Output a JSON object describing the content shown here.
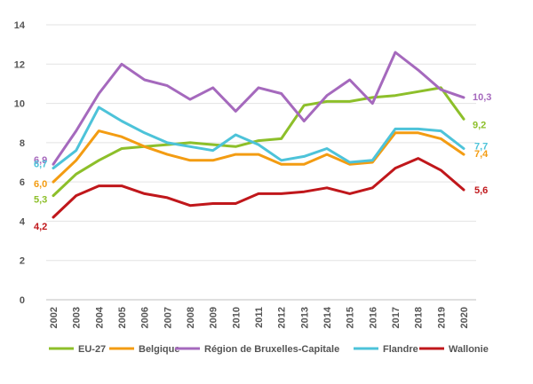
{
  "chart_data": {
    "type": "line",
    "title": "",
    "xlabel": "",
    "ylabel": "",
    "ylim": [
      0,
      14
    ],
    "yticks": [
      0,
      2,
      4,
      6,
      8,
      10,
      12,
      14
    ],
    "x": [
      "2002",
      "2003",
      "2004",
      "2005",
      "2006",
      "2007",
      "2008",
      "2009",
      "2010",
      "2011",
      "2012",
      "2013",
      "2014",
      "2015",
      "2016",
      "2017",
      "2018",
      "2019",
      "2020"
    ],
    "grid": "y",
    "legend_position": "bottom",
    "series": [
      {
        "name": "EU-27",
        "color": "#8DBF2A",
        "values": [
          5.3,
          6.4,
          7.1,
          7.7,
          7.8,
          7.9,
          8.0,
          7.9,
          7.8,
          8.1,
          8.2,
          9.9,
          10.1,
          10.1,
          10.3,
          10.4,
          10.6,
          10.8,
          9.2
        ],
        "start_label": "5,3",
        "end_label": "9,2"
      },
      {
        "name": "Belgique",
        "color": "#F39C12",
        "values": [
          6.0,
          7.1,
          8.6,
          8.3,
          7.8,
          7.4,
          7.1,
          7.1,
          7.4,
          7.4,
          6.9,
          6.9,
          7.4,
          6.9,
          7.0,
          8.5,
          8.5,
          8.2,
          7.4
        ],
        "start_label": "6,0",
        "end_label": "7,4"
      },
      {
        "name": "Région de Bruxelles-Capitale",
        "color": "#A569BD",
        "values": [
          6.9,
          8.6,
          10.5,
          12.0,
          11.2,
          10.9,
          10.2,
          10.8,
          9.6,
          10.8,
          10.5,
          9.1,
          10.4,
          11.2,
          10.0,
          12.6,
          11.7,
          10.7,
          10.3
        ],
        "start_label": "6,9",
        "end_label": "10,3"
      },
      {
        "name": "Flandre",
        "color": "#4DC3D9",
        "values": [
          6.7,
          7.6,
          9.8,
          9.1,
          8.5,
          8.0,
          7.8,
          7.6,
          8.4,
          7.9,
          7.1,
          7.3,
          7.7,
          7.0,
          7.1,
          8.7,
          8.7,
          8.6,
          7.7
        ],
        "start_label": "6,7",
        "end_label": "7,7"
      },
      {
        "name": "Wallonie",
        "color": "#C0171B",
        "values": [
          4.2,
          5.3,
          5.8,
          5.8,
          5.4,
          5.2,
          4.8,
          4.9,
          4.9,
          5.4,
          5.4,
          5.5,
          5.7,
          5.4,
          5.7,
          6.7,
          7.2,
          6.6,
          5.6
        ],
        "start_label": "4,2",
        "end_label": "5,6"
      }
    ]
  }
}
